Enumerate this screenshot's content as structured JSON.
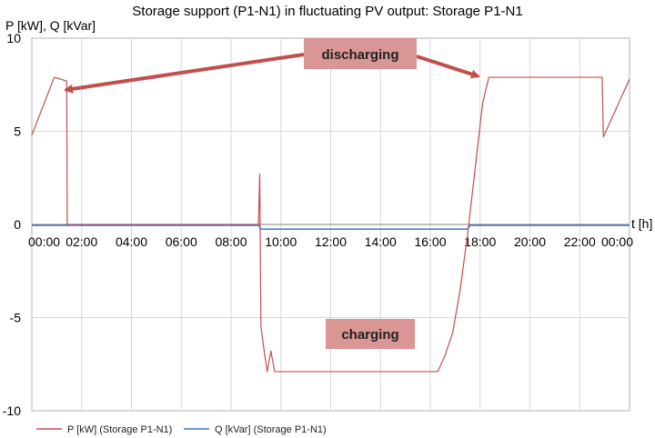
{
  "chart_data": {
    "type": "line",
    "title": "Storage support (P1-N1) in fluctuating PV output: Storage P1-N1",
    "ylabel": "P [kW], Q [kVar]",
    "xlabel": "t [h]",
    "ylim": [
      -10,
      10
    ],
    "xlim": [
      0,
      24
    ],
    "y_ticks": [
      10,
      5,
      0,
      -5,
      -10
    ],
    "y_tick_labels": [
      "10",
      "5",
      "0",
      "-5",
      "-10"
    ],
    "x_ticks": [
      0,
      2,
      4,
      6,
      8,
      10,
      12,
      14,
      16,
      18,
      20,
      22,
      24
    ],
    "x_tick_labels": [
      "00:00",
      "02:00",
      "04:00",
      "06:00",
      "08:00",
      "10:00",
      "12:00",
      "14:00",
      "16:00",
      "18:00",
      "20:00",
      "22:00",
      "00:00"
    ],
    "grid": true,
    "legend_position": "bottom-left",
    "series": [
      {
        "name": "P [kW] (Storage P1-N1)",
        "color": "#c0504d",
        "points": [
          [
            0,
            4.8
          ],
          [
            0.9,
            7.9
          ],
          [
            1.4,
            7.7
          ],
          [
            1.42,
            0
          ],
          [
            9.1,
            0
          ],
          [
            9.15,
            2.7
          ],
          [
            9.2,
            -5.5
          ],
          [
            9.35,
            -7.0
          ],
          [
            9.45,
            -7.9
          ],
          [
            9.6,
            -6.8
          ],
          [
            9.75,
            -7.9
          ],
          [
            10.0,
            -7.9
          ],
          [
            16.3,
            -7.9
          ],
          [
            16.6,
            -7.0
          ],
          [
            16.9,
            -5.8
          ],
          [
            17.2,
            -3.5
          ],
          [
            17.5,
            -0.5
          ],
          [
            17.8,
            3.0
          ],
          [
            18.1,
            6.5
          ],
          [
            18.35,
            7.9
          ],
          [
            22.9,
            7.9
          ],
          [
            22.95,
            4.7
          ],
          [
            24,
            7.8
          ]
        ]
      },
      {
        "name": "Q [kVar] (Storage P1-N1)",
        "color": "#4472c4",
        "points": [
          [
            0,
            -0.05
          ],
          [
            9.1,
            -0.05
          ],
          [
            9.2,
            -0.25
          ],
          [
            17.5,
            -0.25
          ],
          [
            17.6,
            -0.05
          ],
          [
            24,
            -0.05
          ]
        ]
      }
    ],
    "annotations": [
      {
        "text": "discharging",
        "color": "#d99694",
        "arrow_color": "#c0504d"
      },
      {
        "text": "charging",
        "color": "#d99694"
      }
    ]
  }
}
